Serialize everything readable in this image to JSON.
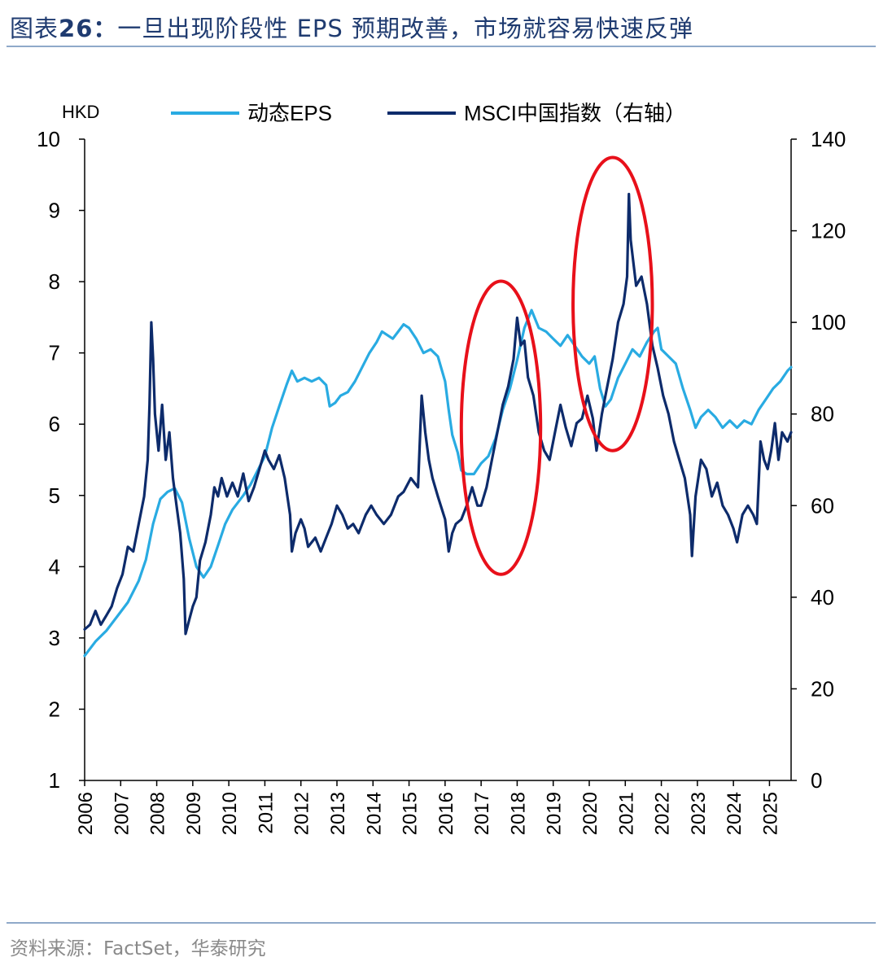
{
  "header": {
    "title_prefix": "图表",
    "title_number": "26：",
    "title_text": "一旦出现阶段性 EPS 预期改善，市场就容易快速反弹"
  },
  "footer": {
    "source": "资料来源：FactSet，华泰研究"
  },
  "colors": {
    "eps": "#29abe2",
    "msci": "#0d2b6b",
    "highlight": "#e8101a",
    "title": "#1f3b70",
    "rule": "#8fa9c9"
  },
  "chart_data": {
    "type": "line",
    "title": "",
    "y_left_unit": "HKD",
    "y_left_range": [
      1,
      10
    ],
    "y_left_ticks": [
      "10",
      "9",
      "8",
      "7",
      "6",
      "5",
      "4",
      "3",
      "2",
      "1"
    ],
    "y_right_range": [
      0,
      140
    ],
    "y_right_ticks": [
      "140",
      "120",
      "100",
      "80",
      "60",
      "40",
      "20",
      "0"
    ],
    "x_range": [
      2006,
      2025.6
    ],
    "x_ticks": [
      "2006",
      "2007",
      "2008",
      "2009",
      "2010",
      "2011",
      "2012",
      "2013",
      "2014",
      "2015",
      "2016",
      "2017",
      "2018",
      "2019",
      "2020",
      "2021",
      "2022",
      "2023",
      "2024",
      "2025"
    ],
    "legend": {
      "position": "top",
      "eps_label": "动态EPS",
      "msci_label": "MSCI中国指数（右轴）"
    },
    "series": [
      {
        "name": "动态EPS",
        "axis": "left",
        "points": [
          [
            2006.0,
            2.75
          ],
          [
            2006.3,
            2.95
          ],
          [
            2006.6,
            3.1
          ],
          [
            2006.9,
            3.3
          ],
          [
            2007.2,
            3.5
          ],
          [
            2007.5,
            3.8
          ],
          [
            2007.7,
            4.1
          ],
          [
            2007.9,
            4.6
          ],
          [
            2008.1,
            4.95
          ],
          [
            2008.3,
            5.05
          ],
          [
            2008.5,
            5.1
          ],
          [
            2008.7,
            4.9
          ],
          [
            2008.9,
            4.4
          ],
          [
            2009.1,
            4.0
          ],
          [
            2009.3,
            3.85
          ],
          [
            2009.5,
            4.0
          ],
          [
            2009.7,
            4.3
          ],
          [
            2009.9,
            4.6
          ],
          [
            2010.1,
            4.8
          ],
          [
            2010.4,
            5.0
          ],
          [
            2010.6,
            5.15
          ],
          [
            2010.8,
            5.35
          ],
          [
            2011.0,
            5.55
          ],
          [
            2011.2,
            5.95
          ],
          [
            2011.4,
            6.25
          ],
          [
            2011.6,
            6.55
          ],
          [
            2011.75,
            6.75
          ],
          [
            2011.9,
            6.6
          ],
          [
            2012.1,
            6.65
          ],
          [
            2012.3,
            6.6
          ],
          [
            2012.5,
            6.65
          ],
          [
            2012.7,
            6.55
          ],
          [
            2012.8,
            6.25
          ],
          [
            2012.95,
            6.3
          ],
          [
            2013.1,
            6.4
          ],
          [
            2013.3,
            6.45
          ],
          [
            2013.5,
            6.6
          ],
          [
            2013.7,
            6.8
          ],
          [
            2013.9,
            7.0
          ],
          [
            2014.1,
            7.15
          ],
          [
            2014.25,
            7.3
          ],
          [
            2014.4,
            7.25
          ],
          [
            2014.55,
            7.2
          ],
          [
            2014.7,
            7.3
          ],
          [
            2014.85,
            7.4
          ],
          [
            2015.0,
            7.35
          ],
          [
            2015.2,
            7.2
          ],
          [
            2015.4,
            7.0
          ],
          [
            2015.6,
            7.05
          ],
          [
            2015.8,
            6.95
          ],
          [
            2016.0,
            6.6
          ],
          [
            2016.1,
            6.2
          ],
          [
            2016.2,
            5.85
          ],
          [
            2016.35,
            5.6
          ],
          [
            2016.45,
            5.35
          ],
          [
            2016.6,
            5.3
          ],
          [
            2016.8,
            5.3
          ],
          [
            2017.0,
            5.45
          ],
          [
            2017.2,
            5.55
          ],
          [
            2017.4,
            5.8
          ],
          [
            2017.6,
            6.2
          ],
          [
            2017.8,
            6.5
          ],
          [
            2018.0,
            6.9
          ],
          [
            2018.2,
            7.35
          ],
          [
            2018.4,
            7.6
          ],
          [
            2018.6,
            7.35
          ],
          [
            2018.8,
            7.3
          ],
          [
            2019.0,
            7.2
          ],
          [
            2019.2,
            7.1
          ],
          [
            2019.4,
            7.25
          ],
          [
            2019.6,
            7.1
          ],
          [
            2019.8,
            6.95
          ],
          [
            2020.0,
            6.85
          ],
          [
            2020.15,
            6.95
          ],
          [
            2020.3,
            6.5
          ],
          [
            2020.45,
            6.25
          ],
          [
            2020.6,
            6.35
          ],
          [
            2020.8,
            6.65
          ],
          [
            2021.0,
            6.85
          ],
          [
            2021.2,
            7.05
          ],
          [
            2021.4,
            6.95
          ],
          [
            2021.6,
            7.15
          ],
          [
            2021.8,
            7.3
          ],
          [
            2021.9,
            7.35
          ],
          [
            2022.0,
            7.05
          ],
          [
            2022.2,
            6.95
          ],
          [
            2022.4,
            6.85
          ],
          [
            2022.6,
            6.5
          ],
          [
            2022.8,
            6.2
          ],
          [
            2022.95,
            5.95
          ],
          [
            2023.1,
            6.1
          ],
          [
            2023.3,
            6.2
          ],
          [
            2023.5,
            6.1
          ],
          [
            2023.7,
            5.95
          ],
          [
            2023.9,
            6.05
          ],
          [
            2024.1,
            5.95
          ],
          [
            2024.3,
            6.05
          ],
          [
            2024.5,
            6.0
          ],
          [
            2024.7,
            6.2
          ],
          [
            2024.9,
            6.35
          ],
          [
            2025.1,
            6.5
          ],
          [
            2025.3,
            6.6
          ],
          [
            2025.5,
            6.75
          ],
          [
            2025.6,
            6.8
          ]
        ]
      },
      {
        "name": "MSCI中国指数（右轴）",
        "axis": "right",
        "points": [
          [
            2006.0,
            33
          ],
          [
            2006.15,
            34
          ],
          [
            2006.3,
            37
          ],
          [
            2006.45,
            34
          ],
          [
            2006.6,
            36
          ],
          [
            2006.75,
            38
          ],
          [
            2006.9,
            42
          ],
          [
            2007.05,
            45
          ],
          [
            2007.2,
            51
          ],
          [
            2007.35,
            50
          ],
          [
            2007.5,
            56
          ],
          [
            2007.65,
            62
          ],
          [
            2007.75,
            70
          ],
          [
            2007.8,
            82
          ],
          [
            2007.85,
            100
          ],
          [
            2007.9,
            92
          ],
          [
            2007.95,
            80
          ],
          [
            2008.05,
            72
          ],
          [
            2008.15,
            82
          ],
          [
            2008.25,
            70
          ],
          [
            2008.35,
            76
          ],
          [
            2008.45,
            66
          ],
          [
            2008.55,
            60
          ],
          [
            2008.65,
            54
          ],
          [
            2008.75,
            44
          ],
          [
            2008.8,
            32
          ],
          [
            2008.9,
            35
          ],
          [
            2009.0,
            38
          ],
          [
            2009.1,
            40
          ],
          [
            2009.2,
            48
          ],
          [
            2009.35,
            52
          ],
          [
            2009.5,
            58
          ],
          [
            2009.6,
            64
          ],
          [
            2009.7,
            62
          ],
          [
            2009.8,
            66
          ],
          [
            2009.95,
            62
          ],
          [
            2010.1,
            65
          ],
          [
            2010.25,
            62
          ],
          [
            2010.4,
            67
          ],
          [
            2010.55,
            61
          ],
          [
            2010.7,
            64
          ],
          [
            2010.85,
            68
          ],
          [
            2011.0,
            72
          ],
          [
            2011.1,
            70
          ],
          [
            2011.25,
            68
          ],
          [
            2011.4,
            71
          ],
          [
            2011.55,
            66
          ],
          [
            2011.7,
            58
          ],
          [
            2011.75,
            50
          ],
          [
            2011.85,
            54
          ],
          [
            2012.0,
            57
          ],
          [
            2012.1,
            55
          ],
          [
            2012.2,
            51
          ],
          [
            2012.4,
            53
          ],
          [
            2012.55,
            50
          ],
          [
            2012.7,
            53
          ],
          [
            2012.85,
            56
          ],
          [
            2013.0,
            60
          ],
          [
            2013.15,
            58
          ],
          [
            2013.3,
            55
          ],
          [
            2013.45,
            56
          ],
          [
            2013.6,
            54
          ],
          [
            2013.8,
            58
          ],
          [
            2013.95,
            60
          ],
          [
            2014.1,
            58
          ],
          [
            2014.3,
            56
          ],
          [
            2014.5,
            58
          ],
          [
            2014.7,
            62
          ],
          [
            2014.85,
            63
          ],
          [
            2015.05,
            66
          ],
          [
            2015.25,
            64
          ],
          [
            2015.35,
            84
          ],
          [
            2015.45,
            76
          ],
          [
            2015.55,
            70
          ],
          [
            2015.65,
            66
          ],
          [
            2015.8,
            62
          ],
          [
            2016.0,
            57
          ],
          [
            2016.1,
            50
          ],
          [
            2016.2,
            54
          ],
          [
            2016.3,
            56
          ],
          [
            2016.45,
            57
          ],
          [
            2016.6,
            60
          ],
          [
            2016.75,
            64
          ],
          [
            2016.9,
            60
          ],
          [
            2017.0,
            60
          ],
          [
            2017.15,
            64
          ],
          [
            2017.3,
            70
          ],
          [
            2017.45,
            76
          ],
          [
            2017.6,
            82
          ],
          [
            2017.75,
            86
          ],
          [
            2017.9,
            92
          ],
          [
            2018.0,
            101
          ],
          [
            2018.1,
            95
          ],
          [
            2018.2,
            96
          ],
          [
            2018.3,
            88
          ],
          [
            2018.45,
            84
          ],
          [
            2018.6,
            76
          ],
          [
            2018.75,
            72
          ],
          [
            2018.9,
            70
          ],
          [
            2019.05,
            76
          ],
          [
            2019.2,
            82
          ],
          [
            2019.35,
            77
          ],
          [
            2019.5,
            73
          ],
          [
            2019.65,
            78
          ],
          [
            2019.8,
            79
          ],
          [
            2019.95,
            84
          ],
          [
            2020.1,
            79
          ],
          [
            2020.2,
            72
          ],
          [
            2020.35,
            80
          ],
          [
            2020.5,
            86
          ],
          [
            2020.65,
            92
          ],
          [
            2020.8,
            100
          ],
          [
            2020.95,
            104
          ],
          [
            2021.05,
            110
          ],
          [
            2021.1,
            128
          ],
          [
            2021.15,
            118
          ],
          [
            2021.3,
            108
          ],
          [
            2021.45,
            110
          ],
          [
            2021.6,
            104
          ],
          [
            2021.75,
            95
          ],
          [
            2021.9,
            90
          ],
          [
            2022.05,
            84
          ],
          [
            2022.2,
            80
          ],
          [
            2022.35,
            74
          ],
          [
            2022.5,
            70
          ],
          [
            2022.65,
            66
          ],
          [
            2022.8,
            58
          ],
          [
            2022.85,
            49
          ],
          [
            2022.95,
            62
          ],
          [
            2023.1,
            70
          ],
          [
            2023.25,
            68
          ],
          [
            2023.4,
            62
          ],
          [
            2023.55,
            65
          ],
          [
            2023.7,
            60
          ],
          [
            2023.85,
            58
          ],
          [
            2024.0,
            55
          ],
          [
            2024.1,
            52
          ],
          [
            2024.25,
            58
          ],
          [
            2024.4,
            60
          ],
          [
            2024.55,
            58
          ],
          [
            2024.65,
            56
          ],
          [
            2024.75,
            74
          ],
          [
            2024.85,
            70
          ],
          [
            2024.95,
            68
          ],
          [
            2025.05,
            72
          ],
          [
            2025.15,
            78
          ],
          [
            2025.25,
            70
          ],
          [
            2025.35,
            76
          ],
          [
            2025.5,
            74
          ],
          [
            2025.6,
            76
          ]
        ]
      }
    ],
    "annotations": [
      {
        "type": "ellipse",
        "label": "highlight-2017-2018",
        "x_center": 2017.55,
        "x_halfwidth": 1.1,
        "y_center_right": 77,
        "y_halfheight_right": 32
      },
      {
        "type": "ellipse",
        "label": "highlight-2020-2021",
        "x_center": 2020.65,
        "x_halfwidth": 1.1,
        "y_center_right": 104,
        "y_halfheight_right": 32
      }
    ]
  }
}
